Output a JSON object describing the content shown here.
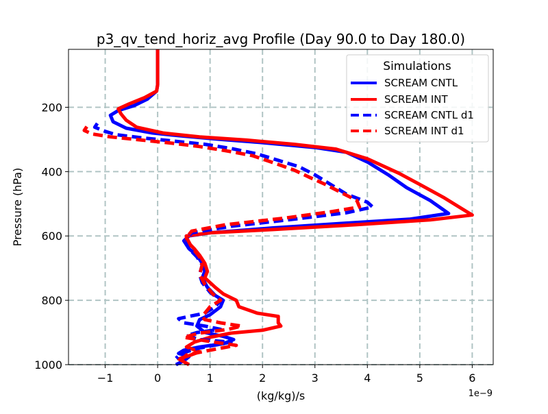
{
  "chart_data": {
    "type": "line",
    "title": "p3_qv_tend_horiz_avg Profile (Day 90.0 to Day 180.0)",
    "xlabel": "(kg/kg)/s",
    "ylabel": "Pressure (hPa)",
    "x_scale_label": "1e−9",
    "xlim": [
      -1.7,
      6.4
    ],
    "ylim": [
      1000,
      20
    ],
    "y_inverted": true,
    "grid": true,
    "x_ticks": [
      -1,
      0,
      1,
      2,
      3,
      4,
      5,
      6
    ],
    "x_tick_labels": [
      "−1",
      "0",
      "1",
      "2",
      "3",
      "4",
      "5",
      "6"
    ],
    "y_ticks": [
      200,
      400,
      600,
      800,
      1000
    ],
    "y_tick_labels": [
      "200",
      "400",
      "600",
      "800",
      "1000"
    ],
    "legend": {
      "title": "Simulations",
      "placement": "top-right",
      "entries": [
        "SCREAM CNTL",
        "SCREAM INT",
        "SCREAM CNTL d1",
        "SCREAM INT d1"
      ]
    },
    "series": [
      {
        "name": "SCREAM CNTL",
        "color": "#0000ff",
        "style": "solid",
        "points": [
          [
            0,
            20
          ],
          [
            0,
            50
          ],
          [
            0,
            100
          ],
          [
            0,
            130
          ],
          [
            -0.02,
            150
          ],
          [
            -0.2,
            175
          ],
          [
            -0.45,
            195
          ],
          [
            -0.75,
            210
          ],
          [
            -0.9,
            225
          ],
          [
            -0.85,
            245
          ],
          [
            -0.6,
            265
          ],
          [
            -0.1,
            280
          ],
          [
            0.5,
            290
          ],
          [
            1.2,
            300
          ],
          [
            2.0,
            310
          ],
          [
            3.0,
            325
          ],
          [
            3.6,
            340
          ],
          [
            4.0,
            370
          ],
          [
            4.4,
            410
          ],
          [
            4.75,
            450
          ],
          [
            5.2,
            490
          ],
          [
            5.55,
            530
          ],
          [
            4.8,
            548
          ],
          [
            3.6,
            560
          ],
          [
            2.2,
            575
          ],
          [
            1.0,
            590
          ],
          [
            0.6,
            600
          ],
          [
            0.5,
            615
          ],
          [
            0.6,
            640
          ],
          [
            0.75,
            660
          ],
          [
            0.85,
            685
          ],
          [
            0.9,
            710
          ],
          [
            0.85,
            730
          ],
          [
            0.95,
            760
          ],
          [
            1.1,
            785
          ],
          [
            1.25,
            800
          ],
          [
            1.2,
            820
          ],
          [
            1.0,
            845
          ],
          [
            0.8,
            860
          ],
          [
            0.75,
            880
          ],
          [
            0.9,
            900
          ],
          [
            1.25,
            912
          ],
          [
            1.45,
            922
          ],
          [
            1.25,
            935
          ],
          [
            0.8,
            945
          ],
          [
            0.5,
            955
          ],
          [
            0.4,
            965
          ],
          [
            0.6,
            975
          ],
          [
            0.5,
            988
          ],
          [
            0.35,
            1000
          ]
        ]
      },
      {
        "name": "SCREAM INT",
        "color": "#ff0000",
        "style": "solid",
        "points": [
          [
            0,
            20
          ],
          [
            0,
            50
          ],
          [
            0,
            100
          ],
          [
            0,
            130
          ],
          [
            -0.02,
            150
          ],
          [
            -0.25,
            170
          ],
          [
            -0.55,
            190
          ],
          [
            -0.75,
            205
          ],
          [
            -0.7,
            220
          ],
          [
            -0.6,
            240
          ],
          [
            -0.4,
            262
          ],
          [
            0.1,
            280
          ],
          [
            0.8,
            292
          ],
          [
            1.7,
            302
          ],
          [
            2.6,
            315
          ],
          [
            3.4,
            330
          ],
          [
            4.0,
            360
          ],
          [
            4.6,
            405
          ],
          [
            5.0,
            440
          ],
          [
            5.45,
            480
          ],
          [
            5.75,
            510
          ],
          [
            6.0,
            535
          ],
          [
            5.2,
            550
          ],
          [
            3.8,
            565
          ],
          [
            2.2,
            580
          ],
          [
            1.0,
            590
          ],
          [
            0.55,
            600
          ],
          [
            0.55,
            615
          ],
          [
            0.7,
            640
          ],
          [
            0.8,
            660
          ],
          [
            0.9,
            685
          ],
          [
            0.95,
            710
          ],
          [
            0.9,
            730
          ],
          [
            1.1,
            760
          ],
          [
            1.25,
            780
          ],
          [
            1.5,
            800
          ],
          [
            1.55,
            820
          ],
          [
            1.9,
            840
          ],
          [
            2.3,
            850
          ],
          [
            2.3,
            870
          ],
          [
            2.35,
            880
          ],
          [
            2.0,
            893
          ],
          [
            1.4,
            902
          ],
          [
            1.0,
            915
          ],
          [
            0.7,
            930
          ],
          [
            0.55,
            945
          ],
          [
            0.8,
            960
          ],
          [
            0.6,
            972
          ],
          [
            0.4,
            982
          ],
          [
            0.6,
            1000
          ]
        ]
      },
      {
        "name": "SCREAM CNTL d1",
        "color": "#0000ff",
        "style": "dashed",
        "points": [
          [
            -1.15,
            250
          ],
          [
            -1.2,
            262
          ],
          [
            -1.0,
            275
          ],
          [
            -0.8,
            285
          ],
          [
            -0.3,
            295
          ],
          [
            0.3,
            305
          ],
          [
            0.9,
            315
          ],
          [
            1.4,
            328
          ],
          [
            1.9,
            345
          ],
          [
            2.3,
            365
          ],
          [
            2.7,
            385
          ],
          [
            3.0,
            410
          ],
          [
            3.3,
            440
          ],
          [
            3.6,
            470
          ],
          [
            4.0,
            495
          ],
          [
            4.1,
            510
          ],
          [
            3.6,
            528
          ],
          [
            2.6,
            548
          ],
          [
            1.4,
            570
          ],
          [
            0.65,
            590
          ],
          [
            0.55,
            610
          ],
          [
            0.6,
            640
          ],
          [
            0.75,
            665
          ],
          [
            0.85,
            690
          ],
          [
            0.8,
            720
          ],
          [
            0.85,
            745
          ],
          [
            1.0,
            775
          ],
          [
            1.2,
            800
          ],
          [
            1.1,
            820
          ],
          [
            0.9,
            840
          ],
          [
            0.6,
            850
          ],
          [
            0.4,
            857
          ],
          [
            0.5,
            870
          ],
          [
            0.9,
            880
          ],
          [
            1.2,
            890
          ],
          [
            0.75,
            900
          ],
          [
            0.55,
            910
          ],
          [
            0.8,
            922
          ],
          [
            1.4,
            930
          ],
          [
            0.75,
            950
          ],
          [
            0.45,
            965
          ],
          [
            0.35,
            980
          ]
        ]
      },
      {
        "name": "SCREAM INT d1",
        "color": "#ff0000",
        "style": "dashed",
        "points": [
          [
            -1.35,
            260
          ],
          [
            -1.4,
            272
          ],
          [
            -1.25,
            283
          ],
          [
            -0.9,
            292
          ],
          [
            -0.3,
            302
          ],
          [
            0.3,
            312
          ],
          [
            0.8,
            322
          ],
          [
            1.3,
            335
          ],
          [
            1.8,
            350
          ],
          [
            2.2,
            372
          ],
          [
            2.6,
            395
          ],
          [
            2.9,
            418
          ],
          [
            3.2,
            440
          ],
          [
            3.5,
            465
          ],
          [
            3.8,
            490
          ],
          [
            3.85,
            510
          ],
          [
            3.3,
            525
          ],
          [
            2.4,
            545
          ],
          [
            1.3,
            565
          ],
          [
            0.65,
            585
          ],
          [
            0.55,
            605
          ],
          [
            0.65,
            635
          ],
          [
            0.8,
            665
          ],
          [
            0.85,
            690
          ],
          [
            0.8,
            720
          ],
          [
            0.9,
            750
          ],
          [
            1.05,
            780
          ],
          [
            1.2,
            800
          ],
          [
            1.0,
            820
          ],
          [
            0.9,
            840
          ],
          [
            0.85,
            850
          ],
          [
            0.9,
            860
          ],
          [
            1.2,
            870
          ],
          [
            1.6,
            880
          ],
          [
            1.35,
            890
          ],
          [
            0.8,
            902
          ],
          [
            0.5,
            915
          ],
          [
            1.0,
            928
          ],
          [
            1.5,
            940
          ],
          [
            1.0,
            955
          ],
          [
            0.55,
            970
          ],
          [
            0.45,
            985
          ]
        ]
      }
    ]
  }
}
